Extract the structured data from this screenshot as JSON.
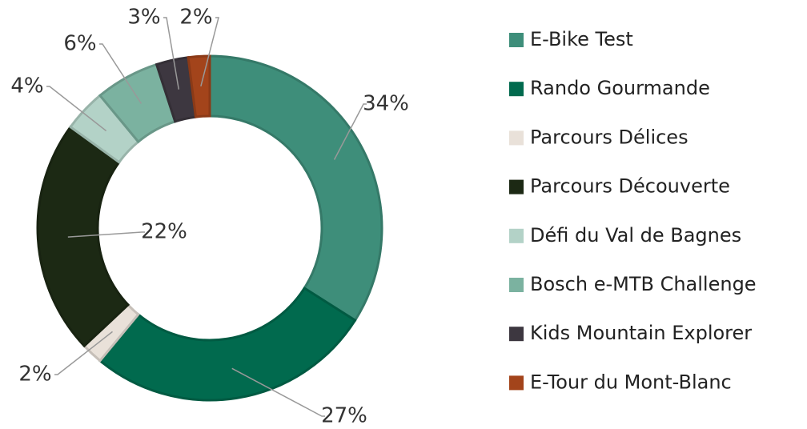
{
  "chart_data": {
    "type": "donut",
    "categories": [
      "E-Bike Test",
      "Rando Gourmande",
      "Parcours Délices",
      "Parcours Découverte",
      "Défi du Val de Bagnes",
      "Bosch e-MTB Challenge",
      "Kids Mountain Explorer",
      "E-Tour du Mont-Blanc"
    ],
    "values": [
      34,
      27,
      2,
      22,
      4,
      6,
      3,
      2
    ],
    "value_labels": [
      "34%",
      "27%",
      "2%",
      "22%",
      "4%",
      "6%",
      "3%",
      "2%"
    ],
    "colors": [
      "#3e8e7a",
      "#016a4e",
      "#e9e1d9",
      "#1c2914",
      "#b3d2c7",
      "#7bb2a0",
      "#3d3740",
      "#a3441b"
    ],
    "legend": "right"
  }
}
